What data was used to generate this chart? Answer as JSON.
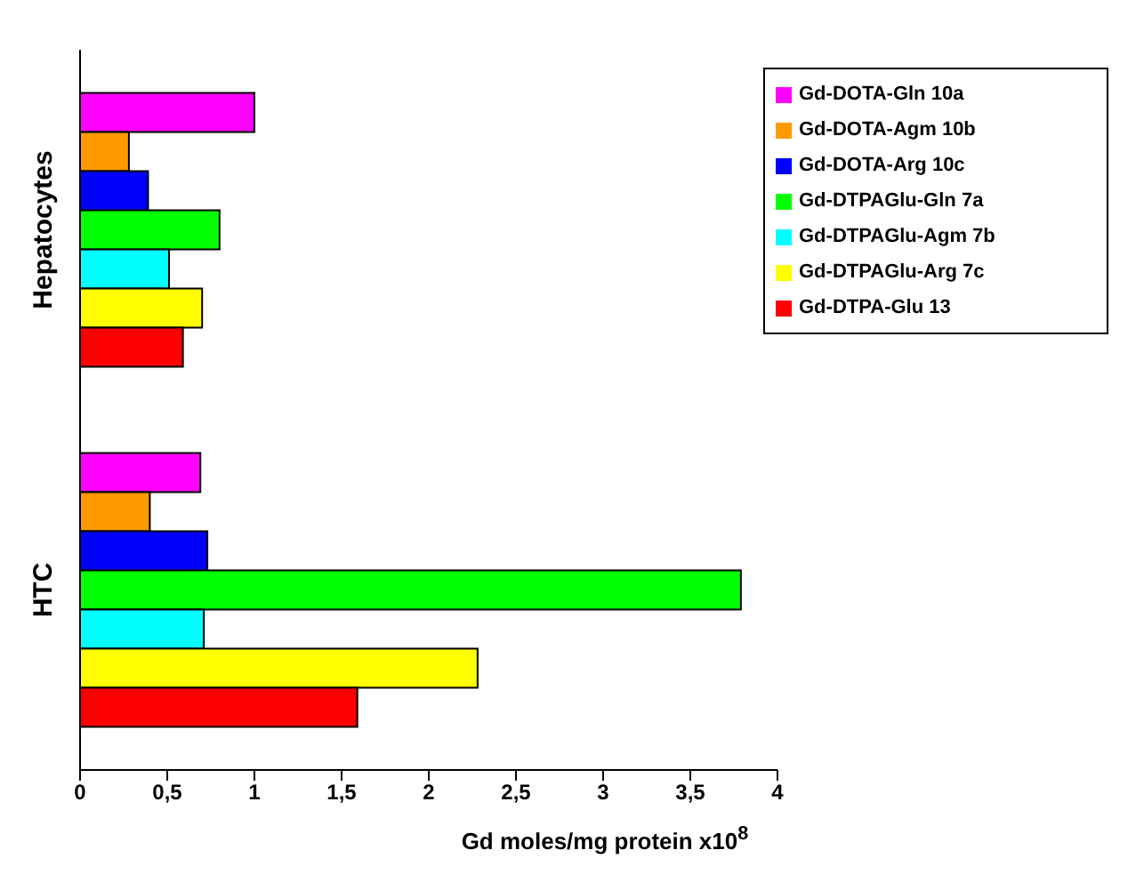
{
  "chart_data": {
    "type": "bar",
    "orientation": "horizontal",
    "xlabel": "Gd moles/mg protein x10$^{8}$",
    "categories": [
      "Hepatocytes",
      "HTC"
    ],
    "series": [
      {
        "name": "Gd-DOTA-Gln 10a",
        "color": "#ff00ff",
        "values": [
          1.0,
          0.69
        ]
      },
      {
        "name": "Gd-DOTA-Agm 10b",
        "color": "#ff9900",
        "values": [
          0.28,
          0.4
        ]
      },
      {
        "name": "Gd-DOTA-Arg 10c",
        "color": "#0000ff",
        "values": [
          0.39,
          0.73
        ]
      },
      {
        "name": "Gd-DTPAGlu-Gln 7a",
        "color": "#00ff00",
        "values": [
          0.8,
          3.79
        ]
      },
      {
        "name": "Gd-DTPAGlu-Agm 7b",
        "color": "#00ffff",
        "values": [
          0.51,
          0.71
        ]
      },
      {
        "name": "Gd-DTPAGlu-Arg 7c",
        "color": "#ffff00",
        "values": [
          0.7,
          2.28
        ]
      },
      {
        "name": "Gd-DTPA-Glu 13",
        "color": "#ff0000",
        "values": [
          0.59,
          1.59
        ]
      }
    ],
    "xlim": [
      0,
      4
    ],
    "xticks": [
      0,
      {
        "value": 0.5,
        "label": "0,5"
      },
      1,
      {
        "value": 1.5,
        "label": "1,5"
      },
      2,
      {
        "value": 2.5,
        "label": "2,5"
      },
      3,
      {
        "value": 3.5,
        "label": "3,5"
      },
      4
    ],
    "grid": false,
    "legend": "top right"
  }
}
